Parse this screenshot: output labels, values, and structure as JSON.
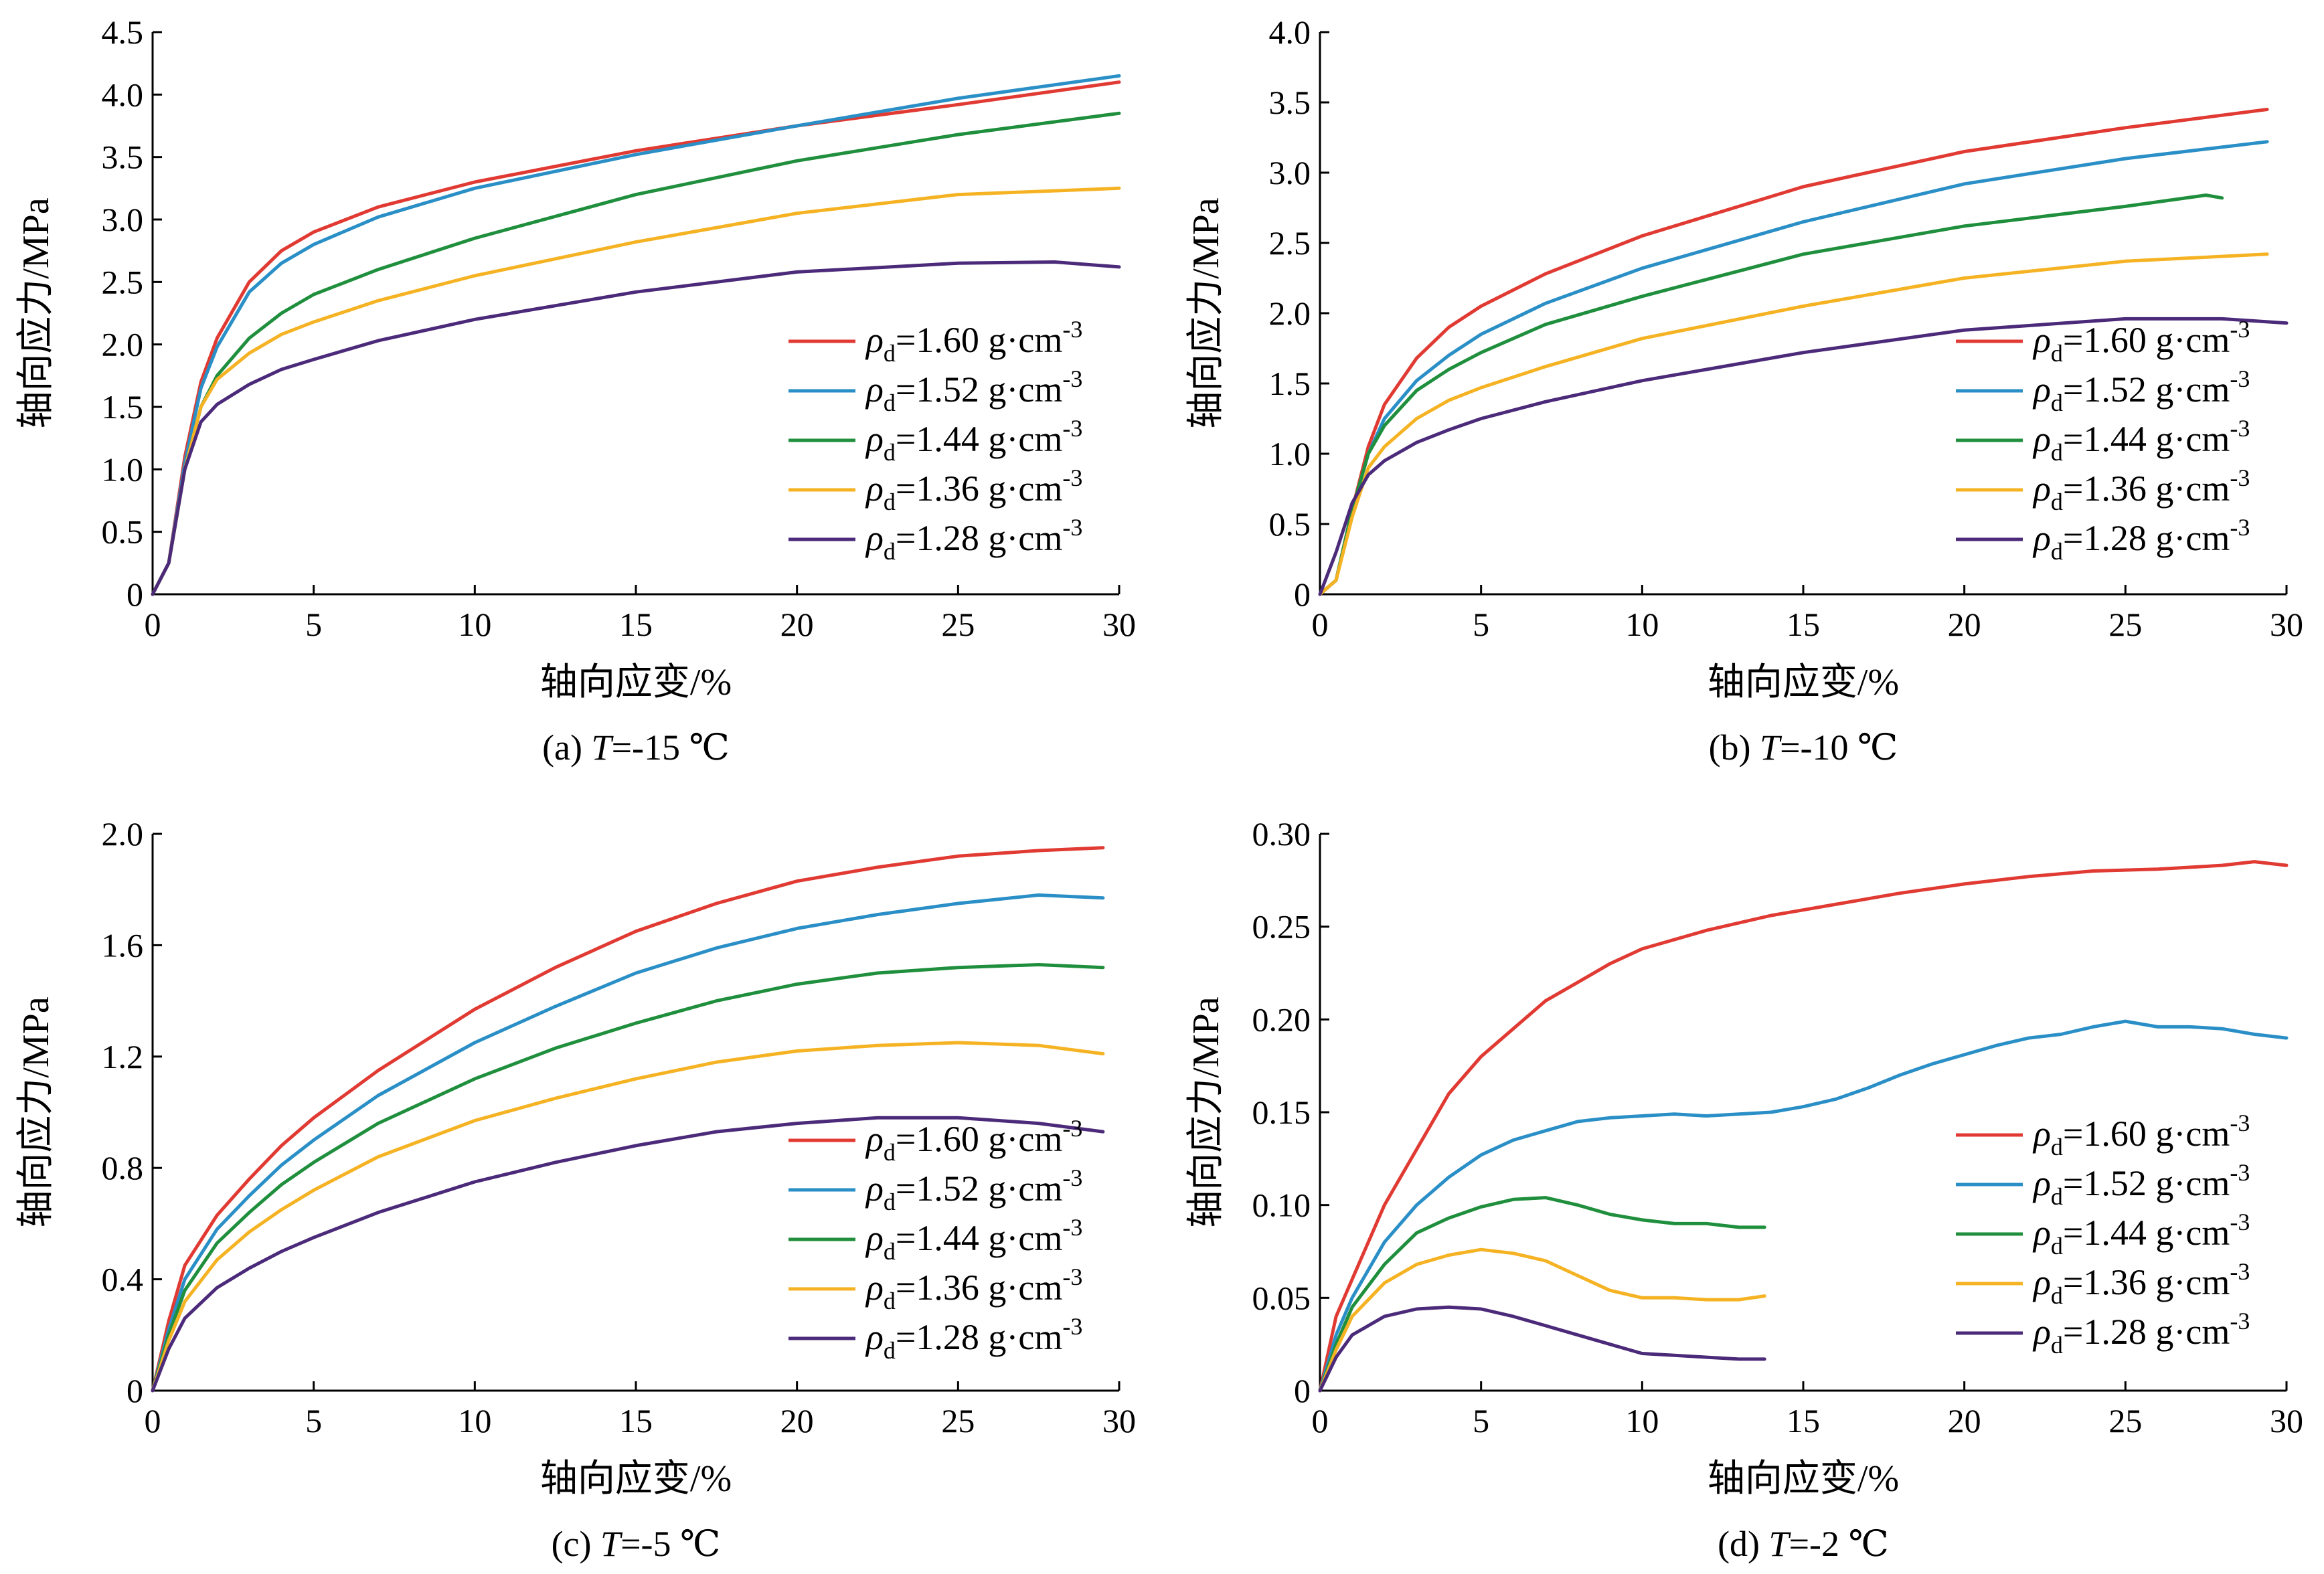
{
  "chart_data": [
    {
      "type": "line",
      "panel": "a",
      "caption_prefix": "(a) ",
      "caption_var": "T",
      "caption_value": "=-15 ℃",
      "xlabel": "轴向应变/%",
      "ylabel": "轴向应力/MPa",
      "xlim": [
        0,
        30
      ],
      "ylim": [
        0,
        4.5
      ],
      "xticks": [
        0,
        5,
        10,
        15,
        20,
        25,
        30
      ],
      "yticks": [
        0,
        0.5,
        1.0,
        1.5,
        2.0,
        2.5,
        3.0,
        3.5,
        4.0,
        4.5
      ],
      "ytick_labels": [
        "0",
        "0.5",
        "1.0",
        "1.5",
        "2.0",
        "2.5",
        "3.0",
        "3.5",
        "4.0",
        "4.5"
      ],
      "legend_position": "lower-right",
      "series": [
        {
          "name": "ρd=1.60 g·cm-3",
          "rho": "=1.60 g·cm",
          "color": "#e03a33",
          "x": [
            0,
            0.5,
            1,
            1.5,
            2,
            3,
            4,
            5,
            7,
            10,
            15,
            20,
            25,
            30
          ],
          "y": [
            0,
            0.25,
            1.1,
            1.7,
            2.05,
            2.5,
            2.75,
            2.9,
            3.1,
            3.3,
            3.55,
            3.75,
            3.92,
            4.1
          ]
        },
        {
          "name": "ρd=1.52 g·cm-3",
          "rho": "=1.52 g·cm",
          "color": "#2a8fc6",
          "x": [
            0,
            0.5,
            1,
            1.5,
            2,
            3,
            4,
            5,
            7,
            10,
            15,
            20,
            25,
            30
          ],
          "y": [
            0,
            0.25,
            1.05,
            1.65,
            1.98,
            2.42,
            2.65,
            2.8,
            3.02,
            3.25,
            3.52,
            3.75,
            3.97,
            4.15
          ]
        },
        {
          "name": "ρd=1.44 g·cm-3",
          "rho": "=1.44 g·cm",
          "color": "#1f8f3d",
          "x": [
            0,
            0.5,
            1,
            1.5,
            2,
            3,
            4,
            5,
            7,
            10,
            15,
            20,
            25,
            30
          ],
          "y": [
            0,
            0.25,
            1.0,
            1.5,
            1.75,
            2.05,
            2.25,
            2.4,
            2.6,
            2.85,
            3.2,
            3.47,
            3.68,
            3.85
          ]
        },
        {
          "name": "ρd=1.36 g·cm-3",
          "rho": "=1.36 g·cm",
          "color": "#f5b324",
          "x": [
            0,
            0.5,
            1,
            1.5,
            2,
            3,
            4,
            5,
            7,
            10,
            15,
            20,
            25,
            30
          ],
          "y": [
            0,
            0.25,
            1.0,
            1.5,
            1.72,
            1.93,
            2.08,
            2.18,
            2.35,
            2.55,
            2.82,
            3.05,
            3.2,
            3.25
          ]
        },
        {
          "name": "ρd=1.28 g·cm-3",
          "rho": "=1.28 g·cm",
          "color": "#4b2a7a",
          "x": [
            0,
            0.5,
            1,
            1.5,
            2,
            3,
            4,
            5,
            7,
            10,
            15,
            20,
            25,
            28,
            30
          ],
          "y": [
            0,
            0.25,
            1.0,
            1.38,
            1.52,
            1.68,
            1.8,
            1.88,
            2.03,
            2.2,
            2.42,
            2.58,
            2.65,
            2.66,
            2.62
          ]
        }
      ]
    },
    {
      "type": "line",
      "panel": "b",
      "caption_prefix": "(b) ",
      "caption_var": "T",
      "caption_value": "=-10 ℃",
      "xlabel": "轴向应变/%",
      "ylabel": "轴向应力/MPa",
      "xlim": [
        0,
        30
      ],
      "ylim": [
        0,
        4.0
      ],
      "xticks": [
        0,
        5,
        10,
        15,
        20,
        25,
        30
      ],
      "yticks": [
        0,
        0.5,
        1.0,
        1.5,
        2.0,
        2.5,
        3.0,
        3.5,
        4.0
      ],
      "ytick_labels": [
        "0",
        "0.5",
        "1.0",
        "1.5",
        "2.0",
        "2.5",
        "3.0",
        "3.5",
        "4.0"
      ],
      "legend_position": "lower-right",
      "series": [
        {
          "name": "ρd=1.60 g·cm-3",
          "rho": "=1.60 g·cm",
          "color": "#e03a33",
          "x": [
            0,
            0.5,
            1,
            1.5,
            2,
            3,
            4,
            5,
            7,
            10,
            15,
            20,
            25,
            29.4
          ],
          "y": [
            0,
            0.1,
            0.6,
            1.05,
            1.35,
            1.68,
            1.9,
            2.05,
            2.28,
            2.55,
            2.9,
            3.15,
            3.32,
            3.45
          ]
        },
        {
          "name": "ρd=1.52 g·cm-3",
          "rho": "=1.52 g·cm",
          "color": "#2a8fc6",
          "x": [
            0,
            0.5,
            1,
            1.5,
            2,
            3,
            4,
            5,
            7,
            10,
            15,
            20,
            25,
            29.4
          ],
          "y": [
            0,
            0.1,
            0.6,
            1.0,
            1.25,
            1.52,
            1.7,
            1.85,
            2.07,
            2.32,
            2.65,
            2.92,
            3.1,
            3.22
          ]
        },
        {
          "name": "ρd=1.44 g·cm-3",
          "rho": "=1.44 g·cm",
          "color": "#1f8f3d",
          "x": [
            0,
            0.5,
            1,
            1.5,
            2,
            3,
            4,
            5,
            7,
            10,
            15,
            20,
            25,
            27.5,
            28
          ],
          "y": [
            0,
            0.1,
            0.6,
            1.0,
            1.2,
            1.45,
            1.6,
            1.72,
            1.92,
            2.12,
            2.42,
            2.62,
            2.76,
            2.84,
            2.82
          ]
        },
        {
          "name": "ρd=1.36 g·cm-3",
          "rho": "=1.36 g·cm",
          "color": "#f5b324",
          "x": [
            0,
            0.5,
            1,
            1.5,
            2,
            3,
            4,
            5,
            7,
            10,
            15,
            20,
            25,
            29.4
          ],
          "y": [
            0,
            0.1,
            0.55,
            0.9,
            1.05,
            1.25,
            1.38,
            1.47,
            1.62,
            1.82,
            2.05,
            2.25,
            2.37,
            2.42
          ]
        },
        {
          "name": "ρd=1.28 g·cm-3",
          "rho": "=1.28 g·cm",
          "color": "#4b2a7a",
          "x": [
            0,
            0.5,
            1,
            1.5,
            2,
            3,
            4,
            5,
            7,
            10,
            15,
            20,
            25,
            28,
            30
          ],
          "y": [
            0,
            0.3,
            0.65,
            0.85,
            0.95,
            1.08,
            1.17,
            1.25,
            1.37,
            1.52,
            1.72,
            1.88,
            1.96,
            1.96,
            1.93
          ]
        }
      ]
    },
    {
      "type": "line",
      "panel": "c",
      "caption_prefix": "(c) ",
      "caption_var": "T",
      "caption_value": "=-5 ℃",
      "xlabel": "轴向应变/%",
      "ylabel": "轴向应力/MPa",
      "xlim": [
        0,
        30
      ],
      "ylim": [
        0,
        2.0
      ],
      "xticks": [
        0,
        5,
        10,
        15,
        20,
        25,
        30
      ],
      "yticks": [
        0,
        0.4,
        0.8,
        1.2,
        1.6,
        2.0
      ],
      "ytick_labels": [
        "0",
        "0.4",
        "0.8",
        "1.2",
        "1.6",
        "2.0"
      ],
      "legend_position": "lower-right",
      "series": [
        {
          "name": "ρd=1.60 g·cm-3",
          "rho": "=1.60 g·cm",
          "color": "#e03a33",
          "x": [
            0,
            0.5,
            1,
            2,
            3,
            4,
            5,
            7,
            10,
            12.5,
            15,
            17.5,
            20,
            22.5,
            25,
            27.5,
            29.5
          ],
          "y": [
            0,
            0.25,
            0.45,
            0.63,
            0.76,
            0.88,
            0.98,
            1.15,
            1.37,
            1.52,
            1.65,
            1.75,
            1.83,
            1.88,
            1.92,
            1.94,
            1.95
          ]
        },
        {
          "name": "ρd=1.52 g·cm-3",
          "rho": "=1.52 g·cm",
          "color": "#2a8fc6",
          "x": [
            0,
            0.5,
            1,
            2,
            3,
            4,
            5,
            7,
            10,
            12.5,
            15,
            17.5,
            20,
            22.5,
            25,
            27.5,
            29.5
          ],
          "y": [
            0,
            0.22,
            0.4,
            0.58,
            0.7,
            0.81,
            0.9,
            1.06,
            1.25,
            1.38,
            1.5,
            1.59,
            1.66,
            1.71,
            1.75,
            1.78,
            1.77
          ]
        },
        {
          "name": "ρd=1.44 g·cm-3",
          "rho": "=1.44 g·cm",
          "color": "#1f8f3d",
          "x": [
            0,
            0.5,
            1,
            2,
            3,
            4,
            5,
            7,
            10,
            12.5,
            15,
            17.5,
            20,
            22.5,
            25,
            27.5,
            29.5
          ],
          "y": [
            0,
            0.2,
            0.36,
            0.53,
            0.64,
            0.74,
            0.82,
            0.96,
            1.12,
            1.23,
            1.32,
            1.4,
            1.46,
            1.5,
            1.52,
            1.53,
            1.52
          ]
        },
        {
          "name": "ρd=1.36 g·cm-3",
          "rho": "=1.36 g·cm",
          "color": "#f5b324",
          "x": [
            0,
            0.5,
            1,
            2,
            3,
            4,
            5,
            7,
            10,
            12.5,
            15,
            17.5,
            20,
            22.5,
            25,
            27.5,
            29.5
          ],
          "y": [
            0,
            0.18,
            0.32,
            0.47,
            0.57,
            0.65,
            0.72,
            0.84,
            0.97,
            1.05,
            1.12,
            1.18,
            1.22,
            1.24,
            1.25,
            1.24,
            1.21
          ]
        },
        {
          "name": "ρd=1.28 g·cm-3",
          "rho": "=1.28 g·cm",
          "color": "#4b2a7a",
          "x": [
            0,
            0.5,
            1,
            2,
            3,
            4,
            5,
            7,
            10,
            12.5,
            15,
            17.5,
            20,
            22.5,
            25,
            27.5,
            29.5
          ],
          "y": [
            0,
            0.15,
            0.26,
            0.37,
            0.44,
            0.5,
            0.55,
            0.64,
            0.75,
            0.82,
            0.88,
            0.93,
            0.96,
            0.98,
            0.98,
            0.96,
            0.93
          ]
        }
      ]
    },
    {
      "type": "line",
      "panel": "d",
      "caption_prefix": "(d) ",
      "caption_var": "T",
      "caption_value": "=-2 ℃",
      "xlabel": "轴向应变/%",
      "ylabel": "轴向应力/MPa",
      "xlim": [
        0,
        30
      ],
      "ylim": [
        0,
        0.3
      ],
      "xticks": [
        0,
        5,
        10,
        15,
        20,
        25,
        30
      ],
      "yticks": [
        0,
        0.05,
        0.1,
        0.15,
        0.2,
        0.25,
        0.3
      ],
      "ytick_labels": [
        "0",
        "0.05",
        "0.10",
        "0.15",
        "0.20",
        "0.25",
        "0.30"
      ],
      "legend_position": "right",
      "series": [
        {
          "name": "ρd=1.60 g·cm-3",
          "rho": "=1.60 g·cm",
          "color": "#e03a33",
          "x": [
            0,
            0.5,
            1,
            2,
            3,
            4,
            5,
            6,
            7,
            8,
            9,
            10,
            12,
            14,
            16,
            18,
            20,
            22,
            24,
            26,
            28,
            29,
            30
          ],
          "y": [
            0,
            0.04,
            0.06,
            0.1,
            0.13,
            0.16,
            0.18,
            0.195,
            0.21,
            0.22,
            0.23,
            0.238,
            0.248,
            0.256,
            0.262,
            0.268,
            0.273,
            0.277,
            0.28,
            0.281,
            0.283,
            0.285,
            0.283
          ]
        },
        {
          "name": "ρd=1.52 g·cm-3",
          "rho": "=1.52 g·cm",
          "color": "#2a8fc6",
          "x": [
            0,
            0.5,
            1,
            2,
            3,
            4,
            5,
            6,
            7,
            8,
            9,
            10,
            11,
            12,
            13,
            14,
            15,
            16,
            17,
            18,
            19,
            20,
            21,
            22,
            23,
            24,
            25,
            26,
            27,
            28,
            29,
            30
          ],
          "y": [
            0,
            0.03,
            0.05,
            0.08,
            0.1,
            0.115,
            0.127,
            0.135,
            0.14,
            0.145,
            0.147,
            0.148,
            0.149,
            0.148,
            0.149,
            0.15,
            0.153,
            0.157,
            0.163,
            0.17,
            0.176,
            0.181,
            0.186,
            0.19,
            0.192,
            0.196,
            0.199,
            0.196,
            0.196,
            0.195,
            0.192,
            0.19
          ]
        },
        {
          "name": "ρd=1.44 g·cm-3",
          "rho": "=1.44 g·cm",
          "color": "#1f8f3d",
          "x": [
            0,
            0.5,
            1,
            2,
            3,
            4,
            5,
            6,
            7,
            8,
            9,
            10,
            11,
            12,
            13,
            13.8
          ],
          "y": [
            0,
            0.025,
            0.045,
            0.068,
            0.085,
            0.093,
            0.099,
            0.103,
            0.104,
            0.1,
            0.095,
            0.092,
            0.09,
            0.09,
            0.088,
            0.088
          ]
        },
        {
          "name": "ρd=1.36 g·cm-3",
          "rho": "=1.36 g·cm",
          "color": "#f5b324",
          "x": [
            0,
            0.5,
            1,
            2,
            3,
            4,
            5,
            6,
            7,
            8,
            9,
            10,
            11,
            12,
            13,
            13.8
          ],
          "y": [
            0,
            0.022,
            0.04,
            0.058,
            0.068,
            0.073,
            0.076,
            0.074,
            0.07,
            0.062,
            0.054,
            0.05,
            0.05,
            0.049,
            0.049,
            0.051
          ]
        },
        {
          "name": "ρd=1.28 g·cm-3",
          "rho": "=1.28 g·cm",
          "color": "#4b2a7a",
          "x": [
            0,
            0.5,
            1,
            2,
            3,
            4,
            5,
            6,
            7,
            8,
            9,
            10,
            11,
            12,
            13,
            13.8
          ],
          "y": [
            0,
            0.018,
            0.03,
            0.04,
            0.044,
            0.045,
            0.044,
            0.04,
            0.035,
            0.03,
            0.025,
            0.02,
            0.019,
            0.018,
            0.017,
            0.017
          ]
        }
      ]
    }
  ],
  "legend_symbol": "ρ",
  "legend_sub": "d",
  "legend_sup": "-3"
}
